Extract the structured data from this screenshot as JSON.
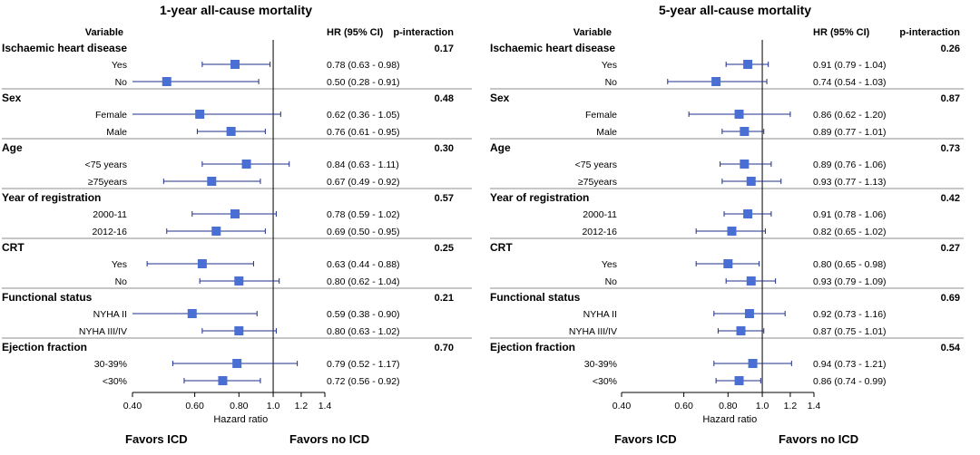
{
  "colors": {
    "marker": "#4a6fd4",
    "ci_line": "#1f2f8a",
    "axis": "#000000",
    "divider": "#666666"
  },
  "labels": {
    "variable_header": "Variable",
    "hr_header": "HR (95% CI)",
    "pint_header": "p-interaction",
    "xlabel": "Hazard ratio",
    "favors_left": "Favors ICD",
    "favors_right": "Favors no ICD"
  },
  "chart_data": [
    {
      "type": "forest",
      "title": "1-year all-cause mortality",
      "xlabel": "Hazard ratio",
      "x_scale": "log",
      "x_ticks": [
        "0.40",
        "0.60",
        "0.80",
        "1.0",
        "1.2",
        "1.4"
      ],
      "reference_line": 1.0,
      "groups": [
        {
          "name": "Ischaemic heart disease",
          "p_interaction": "0.17",
          "rows": [
            {
              "label": "Yes",
              "hr": 0.78,
              "lo": 0.63,
              "hi": 0.98,
              "text": "0.78 (0.63 - 0.98)"
            },
            {
              "label": "No",
              "hr": 0.5,
              "lo": 0.28,
              "hi": 0.91,
              "text": "0.50 (0.28 - 0.91)"
            }
          ]
        },
        {
          "name": "Sex",
          "p_interaction": "0.48",
          "rows": [
            {
              "label": "Female",
              "hr": 0.62,
              "lo": 0.36,
              "hi": 1.05,
              "text": "0.62 (0.36 - 1.05)"
            },
            {
              "label": "Male",
              "hr": 0.76,
              "lo": 0.61,
              "hi": 0.95,
              "text": "0.76 (0.61 - 0.95)"
            }
          ]
        },
        {
          "name": "Age",
          "p_interaction": "0.30",
          "rows": [
            {
              "label": "<75 years",
              "hr": 0.84,
              "lo": 0.63,
              "hi": 1.11,
              "text": "0.84 (0.63 - 1.11)"
            },
            {
              "label": "≥75years",
              "hr": 0.67,
              "lo": 0.49,
              "hi": 0.92,
              "text": "0.67 (0.49 - 0.92)"
            }
          ]
        },
        {
          "name": "Year of registration",
          "p_interaction": "0.57",
          "rows": [
            {
              "label": "2000-11",
              "hr": 0.78,
              "lo": 0.59,
              "hi": 1.02,
              "text": "0.78 (0.59 - 1.02)"
            },
            {
              "label": "2012-16",
              "hr": 0.69,
              "lo": 0.5,
              "hi": 0.95,
              "text": "0.69 (0.50 - 0.95)"
            }
          ]
        },
        {
          "name": "CRT",
          "p_interaction": "0.25",
          "rows": [
            {
              "label": "Yes",
              "hr": 0.63,
              "lo": 0.44,
              "hi": 0.88,
              "text": "0.63 (0.44 - 0.88)"
            },
            {
              "label": "No",
              "hr": 0.8,
              "lo": 0.62,
              "hi": 1.04,
              "text": "0.80 (0.62 - 1.04)"
            }
          ]
        },
        {
          "name": "Functional status",
          "p_interaction": "0.21",
          "rows": [
            {
              "label": "NYHA II",
              "hr": 0.59,
              "lo": 0.38,
              "hi": 0.9,
              "text": "0.59 (0.38 - 0.90)"
            },
            {
              "label": "NYHA III/IV",
              "hr": 0.8,
              "lo": 0.63,
              "hi": 1.02,
              "text": "0.80 (0.63 - 1.02)"
            }
          ]
        },
        {
          "name": "Ejection fraction",
          "p_interaction": "0.70",
          "rows": [
            {
              "label": "30-39%",
              "hr": 0.79,
              "lo": 0.52,
              "hi": 1.17,
              "text": "0.79 (0.52 - 1.17)"
            },
            {
              "label": "<30%",
              "hr": 0.72,
              "lo": 0.56,
              "hi": 0.92,
              "text": "0.72 (0.56 - 0.92)"
            }
          ]
        }
      ]
    },
    {
      "type": "forest",
      "title": "5-year all-cause mortality",
      "xlabel": "Hazard ratio",
      "x_scale": "log",
      "x_ticks": [
        "0.40",
        "0.60",
        "0.80",
        "1.0",
        "1.2",
        "1.4"
      ],
      "reference_line": 1.0,
      "groups": [
        {
          "name": "Ischaemic heart disease",
          "p_interaction": "0.26",
          "rows": [
            {
              "label": "Yes",
              "hr": 0.91,
              "lo": 0.79,
              "hi": 1.04,
              "text": "0.91 (0.79 - 1.04)"
            },
            {
              "label": "No",
              "hr": 0.74,
              "lo": 0.54,
              "hi": 1.03,
              "text": "0.74 (0.54 - 1.03)"
            }
          ]
        },
        {
          "name": "Sex",
          "p_interaction": "0.87",
          "rows": [
            {
              "label": "Female",
              "hr": 0.86,
              "lo": 0.62,
              "hi": 1.2,
              "text": "0.86 (0.62 - 1.20)"
            },
            {
              "label": "Male",
              "hr": 0.89,
              "lo": 0.77,
              "hi": 1.01,
              "text": "0.89 (0.77 - 1.01)"
            }
          ]
        },
        {
          "name": "Age",
          "p_interaction": "0.73",
          "rows": [
            {
              "label": "<75 years",
              "hr": 0.89,
              "lo": 0.76,
              "hi": 1.06,
              "text": "0.89 (0.76 - 1.06)"
            },
            {
              "label": "≥75years",
              "hr": 0.93,
              "lo": 0.77,
              "hi": 1.13,
              "text": "0.93 (0.77 - 1.13)"
            }
          ]
        },
        {
          "name": "Year of registration",
          "p_interaction": "0.42",
          "rows": [
            {
              "label": "2000-11",
              "hr": 0.91,
              "lo": 0.78,
              "hi": 1.06,
              "text": "0.91 (0.78 - 1.06)"
            },
            {
              "label": "2012-16",
              "hr": 0.82,
              "lo": 0.65,
              "hi": 1.02,
              "text": "0.82 (0.65 - 1.02)"
            }
          ]
        },
        {
          "name": "CRT",
          "p_interaction": "0.27",
          "rows": [
            {
              "label": "Yes",
              "hr": 0.8,
              "lo": 0.65,
              "hi": 0.98,
              "text": "0.80 (0.65 - 0.98)"
            },
            {
              "label": "No",
              "hr": 0.93,
              "lo": 0.79,
              "hi": 1.09,
              "text": "0.93 (0.79 - 1.09)"
            }
          ]
        },
        {
          "name": "Functional status",
          "p_interaction": "0.69",
          "rows": [
            {
              "label": "NYHA II",
              "hr": 0.92,
              "lo": 0.73,
              "hi": 1.16,
              "text": "0.92 (0.73 - 1.16)"
            },
            {
              "label": "NYHA III/IV",
              "hr": 0.87,
              "lo": 0.75,
              "hi": 1.01,
              "text": "0.87 (0.75 - 1.01)"
            }
          ]
        },
        {
          "name": "Ejection fraction",
          "p_interaction": "0.54",
          "rows": [
            {
              "label": "30-39%",
              "hr": 0.94,
              "lo": 0.73,
              "hi": 1.21,
              "text": "0.94 (0.73 - 1.21)"
            },
            {
              "label": "<30%",
              "hr": 0.86,
              "lo": 0.74,
              "hi": 0.99,
              "text": "0.86 (0.74 - 0.99)"
            }
          ]
        }
      ]
    }
  ]
}
